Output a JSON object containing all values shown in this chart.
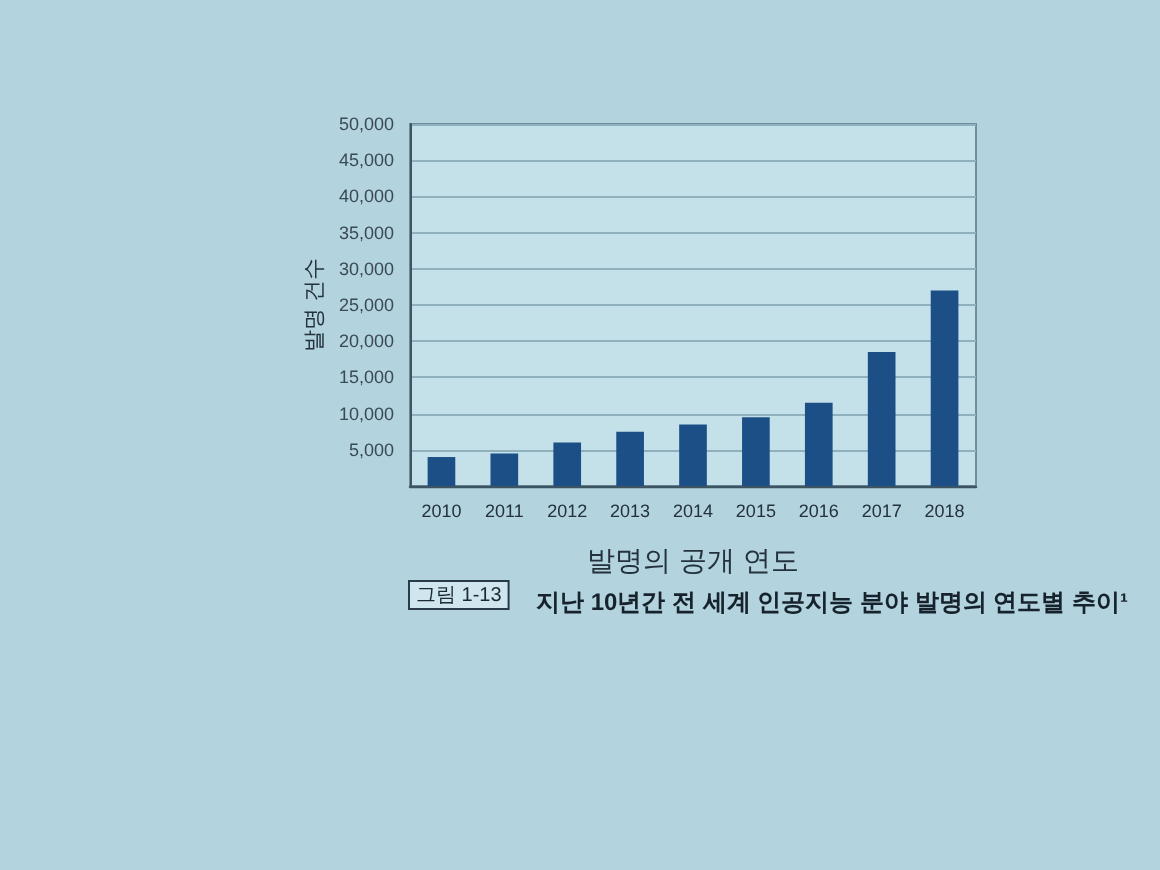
{
  "chart_data": {
    "type": "bar",
    "title": "지난 10년간 전 세계 인공지능 분야 발명의 연도별 추이¹",
    "annotations": [
      "그림 1-13"
    ],
    "xlabel": "발명의 공개 연도",
    "ylabel": "발명 건수",
    "categories": [
      "2010",
      "2011",
      "2012",
      "2013",
      "2014",
      "2015",
      "2016",
      "2017",
      "2018"
    ],
    "values": [
      4000,
      4500,
      6000,
      7500,
      8500,
      9500,
      11500,
      18500,
      27000
    ],
    "color": "#1b4f86",
    "ylim": [
      0,
      50000
    ],
    "yticks": [
      {
        "value": 5000,
        "label": "5,000"
      },
      {
        "value": 10000,
        "label": "10,000"
      },
      {
        "value": 15000,
        "label": "15,000"
      },
      {
        "value": 20000,
        "label": "20,000"
      },
      {
        "value": 25000,
        "label": "25,000"
      },
      {
        "value": 30000,
        "label": "30,000"
      },
      {
        "value": 35000,
        "label": "35,000"
      },
      {
        "value": 40000,
        "label": "40,000"
      },
      {
        "value": 45000,
        "label": "45,000"
      },
      {
        "value": 50000,
        "label": "50,000"
      }
    ],
    "grid": "y"
  }
}
